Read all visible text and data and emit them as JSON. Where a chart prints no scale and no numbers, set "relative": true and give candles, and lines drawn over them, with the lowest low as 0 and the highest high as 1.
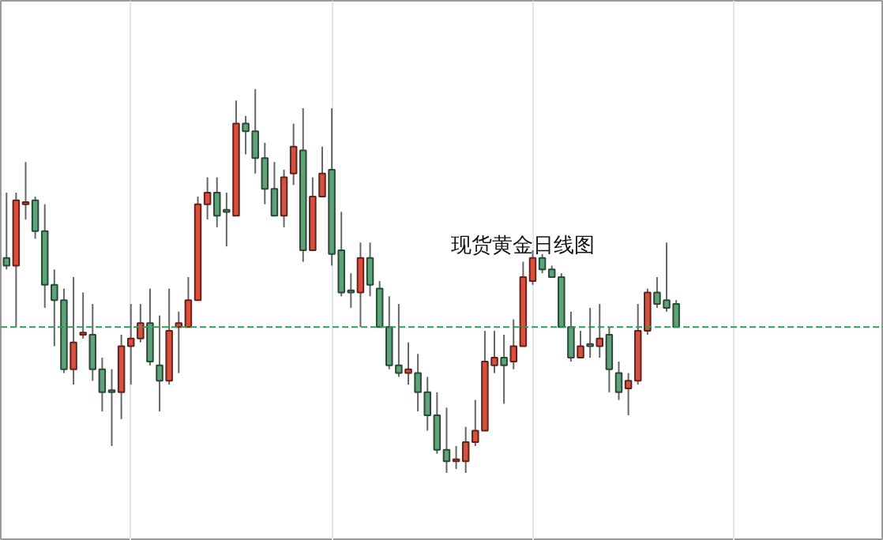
{
  "chart_data": {
    "type": "candlestick",
    "title": "现货黄金日线图",
    "relative": true,
    "grid": "x",
    "categories": [
      null,
      null,
      null,
      null,
      null,
      null,
      null,
      null,
      null,
      null,
      null,
      null,
      null,
      null,
      null,
      null,
      null,
      null,
      null,
      null,
      null,
      null,
      null,
      null,
      null,
      null,
      null,
      null,
      null,
      null,
      null,
      null,
      null,
      null,
      null,
      null,
      null,
      null,
      null,
      null,
      null,
      null,
      null,
      null,
      null,
      null,
      null,
      null,
      null,
      null,
      null,
      null,
      null,
      null,
      null,
      null,
      null,
      null,
      null,
      null,
      null,
      null,
      null,
      null,
      null,
      null,
      null,
      null,
      null,
      null,
      null
    ],
    "ohlc": [
      [
        0.56,
        0.73,
        0.53,
        0.54
      ],
      [
        0.54,
        0.73,
        0.38,
        0.71
      ],
      [
        0.7,
        0.81,
        0.66,
        0.7
      ],
      [
        0.71,
        0.72,
        0.61,
        0.63
      ],
      [
        0.63,
        0.7,
        0.43,
        0.49
      ],
      [
        0.49,
        0.53,
        0.33,
        0.45
      ],
      [
        0.45,
        0.48,
        0.26,
        0.27
      ],
      [
        0.27,
        0.51,
        0.23,
        0.34
      ],
      [
        0.36,
        0.47,
        0.35,
        0.36
      ],
      [
        0.36,
        0.44,
        0.24,
        0.27
      ],
      [
        0.27,
        0.3,
        0.16,
        0.21
      ],
      [
        0.21,
        0.27,
        0.07,
        0.21
      ],
      [
        0.21,
        0.36,
        0.14,
        0.33
      ],
      [
        0.33,
        0.44,
        0.23,
        0.35
      ],
      [
        0.35,
        0.44,
        0.34,
        0.39
      ],
      [
        0.39,
        0.48,
        0.28,
        0.29
      ],
      [
        0.28,
        0.41,
        0.16,
        0.24
      ],
      [
        0.24,
        0.48,
        0.23,
        0.37
      ],
      [
        0.38,
        0.42,
        0.26,
        0.39
      ],
      [
        0.38,
        0.51,
        0.38,
        0.45
      ],
      [
        0.45,
        0.72,
        0.45,
        0.7
      ],
      [
        0.7,
        0.77,
        0.66,
        0.73
      ],
      [
        0.73,
        0.77,
        0.64,
        0.67
      ],
      [
        0.68,
        0.73,
        0.59,
        0.68
      ],
      [
        0.67,
        0.97,
        0.67,
        0.91
      ],
      [
        0.91,
        0.93,
        0.83,
        0.89
      ],
      [
        0.89,
        1.0,
        0.78,
        0.82
      ],
      [
        0.82,
        0.86,
        0.7,
        0.74
      ],
      [
        0.74,
        0.81,
        0.67,
        0.67
      ],
      [
        0.67,
        0.79,
        0.64,
        0.77
      ],
      [
        0.78,
        0.91,
        0.75,
        0.85
      ],
      [
        0.84,
        0.95,
        0.55,
        0.58
      ],
      [
        0.58,
        0.77,
        0.58,
        0.72
      ],
      [
        0.72,
        0.85,
        0.72,
        0.78
      ],
      [
        0.79,
        0.95,
        0.54,
        0.57
      ],
      [
        0.58,
        0.68,
        0.46,
        0.47
      ],
      [
        0.47,
        0.52,
        0.43,
        0.47
      ],
      [
        0.47,
        0.6,
        0.38,
        0.56
      ],
      [
        0.56,
        0.6,
        0.46,
        0.49
      ],
      [
        0.48,
        0.5,
        0.38,
        0.38
      ],
      [
        0.38,
        0.46,
        0.27,
        0.28
      ],
      [
        0.28,
        0.44,
        0.25,
        0.26
      ],
      [
        0.26,
        0.34,
        0.23,
        0.27
      ],
      [
        0.26,
        0.31,
        0.16,
        0.21
      ],
      [
        0.21,
        0.25,
        0.11,
        0.15
      ],
      [
        0.15,
        0.21,
        0.05,
        0.06
      ],
      [
        0.06,
        0.17,
        0.0,
        0.03
      ],
      [
        0.03,
        0.07,
        0.01,
        0.03
      ],
      [
        0.03,
        0.12,
        0.0,
        0.08
      ],
      [
        0.08,
        0.19,
        0.07,
        0.11
      ],
      [
        0.11,
        0.37,
        0.11,
        0.29
      ],
      [
        0.28,
        0.37,
        0.26,
        0.3
      ],
      [
        0.3,
        0.36,
        0.18,
        0.28
      ],
      [
        0.29,
        0.4,
        0.27,
        0.33
      ],
      [
        0.33,
        0.55,
        0.33,
        0.51
      ],
      [
        0.5,
        0.58,
        0.49,
        0.56
      ],
      [
        0.56,
        0.57,
        0.52,
        0.53
      ],
      [
        0.53,
        0.54,
        0.51,
        0.51
      ],
      [
        0.51,
        0.52,
        0.38,
        0.38
      ],
      [
        0.38,
        0.42,
        0.29,
        0.3
      ],
      [
        0.3,
        0.37,
        0.3,
        0.33
      ],
      [
        0.33,
        0.43,
        0.3,
        0.33
      ],
      [
        0.33,
        0.44,
        0.3,
        0.35
      ],
      [
        0.36,
        0.38,
        0.21,
        0.27
      ],
      [
        0.26,
        0.29,
        0.19,
        0.21
      ],
      [
        0.22,
        0.26,
        0.15,
        0.24
      ],
      [
        0.24,
        0.44,
        0.23,
        0.37
      ],
      [
        0.37,
        0.48,
        0.36,
        0.47
      ],
      [
        0.47,
        0.51,
        0.43,
        0.44
      ],
      [
        0.45,
        0.6,
        0.42,
        0.43
      ],
      [
        0.44,
        0.45,
        0.38,
        0.38
      ]
    ],
    "colors": [
      "#5fa37a",
      "#d9503f",
      "#d9503f",
      "#5fa37a",
      "#5fa37a",
      "#5fa37a",
      "#5fa37a",
      "#d9503f",
      "#d9503f",
      "#5fa37a",
      "#5fa37a",
      "#5fa37a",
      "#d9503f",
      "#d9503f",
      "#d9503f",
      "#5fa37a",
      "#5fa37a",
      "#d9503f",
      "#d9503f",
      "#d9503f",
      "#d9503f",
      "#d9503f",
      "#5fa37a",
      "#5fa37a",
      "#d9503f",
      "#5fa37a",
      "#5fa37a",
      "#5fa37a",
      "#5fa37a",
      "#d9503f",
      "#d9503f",
      "#5fa37a",
      "#d9503f",
      "#d9503f",
      "#5fa37a",
      "#5fa37a",
      "#5fa37a",
      "#d9503f",
      "#5fa37a",
      "#5fa37a",
      "#5fa37a",
      "#5fa37a",
      "#d9503f",
      "#5fa37a",
      "#5fa37a",
      "#5fa37a",
      "#5fa37a",
      "#d9503f",
      "#d9503f",
      "#d9503f",
      "#d9503f",
      "#d9503f",
      "#5fa37a",
      "#d9503f",
      "#d9503f",
      "#d9503f",
      "#5fa37a",
      "#5fa37a",
      "#5fa37a",
      "#5fa37a",
      "#d9503f",
      "#5fa37a",
      "#d9503f",
      "#5fa37a",
      "#5fa37a",
      "#d9503f",
      "#d9503f",
      "#d9503f",
      "#5fa37a",
      "#5fa37a",
      "#5fa37a"
    ],
    "ref_lines": [
      {
        "axis": "y",
        "value": 0.38,
        "color": "#2e9e5b",
        "line_style": "dashed"
      }
    ]
  }
}
